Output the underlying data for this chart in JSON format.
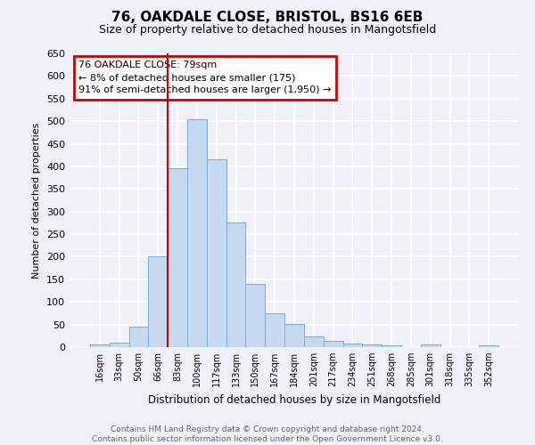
{
  "title": "76, OAKDALE CLOSE, BRISTOL, BS16 6EB",
  "subtitle": "Size of property relative to detached houses in Mangotsfield",
  "xlabel": "Distribution of detached houses by size in Mangotsfield",
  "ylabel": "Number of detached properties",
  "categories": [
    "16sqm",
    "33sqm",
    "50sqm",
    "66sqm",
    "83sqm",
    "100sqm",
    "117sqm",
    "133sqm",
    "150sqm",
    "167sqm",
    "184sqm",
    "201sqm",
    "217sqm",
    "234sqm",
    "251sqm",
    "268sqm",
    "285sqm",
    "301sqm",
    "318sqm",
    "335sqm",
    "352sqm"
  ],
  "values": [
    5,
    10,
    45,
    200,
    395,
    505,
    415,
    275,
    140,
    75,
    52,
    23,
    13,
    8,
    6,
    4,
    0,
    6,
    0,
    0,
    4
  ],
  "bar_color": "#c5d9f0",
  "bar_edge_color": "#7aadd4",
  "vline_color": "#cc0000",
  "annotation_lines": [
    "76 OAKDALE CLOSE: 79sqm",
    "← 8% of detached houses are smaller (175)",
    "91% of semi-detached houses are larger (1,950) →"
  ],
  "annotation_box_color": "white",
  "annotation_box_edge_color": "#cc0000",
  "ylim": [
    0,
    650
  ],
  "yticks": [
    0,
    50,
    100,
    150,
    200,
    250,
    300,
    350,
    400,
    450,
    500,
    550,
    600,
    650
  ],
  "bg_color": "#eef2f8",
  "grid_color": "white",
  "footer_line1": "Contains HM Land Registry data © Crown copyright and database right 2024.",
  "footer_line2": "Contains public sector information licensed under the Open Government Licence v3.0."
}
